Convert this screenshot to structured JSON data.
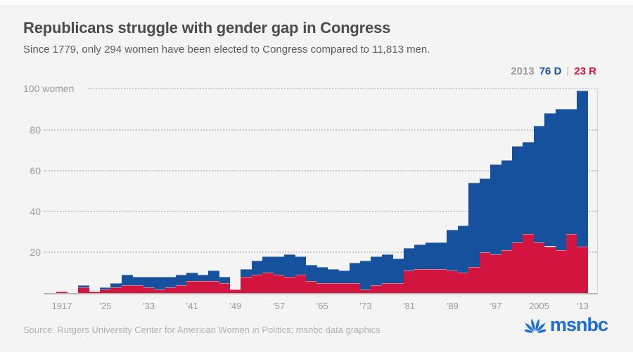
{
  "header": {
    "title": "Republicans struggle with gender gap in Congress",
    "subtitle": "Since 1779, only 294 women have been elected to Congress compared to 11,813 men."
  },
  "legend": {
    "year": "2013",
    "dem": "76 D",
    "separator": "|",
    "rep": "23 R"
  },
  "footer": {
    "source": "Source: Rutgers University Center for American Women in Politics; msnbc data graphics",
    "logo_text": "msnbc"
  },
  "colors": {
    "background": "#f4f4f4",
    "democrat_blue": "#15519d",
    "republican_red": "#d3143f",
    "logo_blue": "#1b6cd6",
    "grid_gray": "#c9c9c9",
    "axis_gray": "#b4b4b4",
    "muted_text": "#9b9b9b"
  },
  "chart_data": {
    "type": "bar",
    "stacked": true,
    "title": "Women elected to Congress by party, per Congress",
    "x": [
      1917,
      1919,
      1921,
      1923,
      1925,
      1927,
      1929,
      1931,
      1933,
      1935,
      1937,
      1939,
      1941,
      1943,
      1945,
      1947,
      1949,
      1951,
      1953,
      1955,
      1957,
      1959,
      1961,
      1963,
      1965,
      1967,
      1969,
      1971,
      1973,
      1975,
      1977,
      1979,
      1981,
      1983,
      1985,
      1987,
      1989,
      1991,
      1993,
      1995,
      1997,
      1999,
      2001,
      2003,
      2005,
      2007,
      2009,
      2011,
      2013
    ],
    "series": [
      {
        "name": "Republican women",
        "color": "#d3143f",
        "values": [
          1,
          0,
          3,
          1,
          2,
          3,
          4,
          4,
          3,
          2,
          3,
          4,
          6,
          6,
          6,
          5,
          2,
          8,
          9,
          10,
          9,
          8,
          9,
          6,
          5,
          5,
          5,
          5,
          2,
          4,
          5,
          5,
          11,
          12,
          12,
          12,
          11,
          10,
          13,
          20,
          19,
          21,
          25,
          29,
          25,
          23,
          21,
          29,
          23
        ]
      },
      {
        "name": "Democratic women",
        "color": "#15519d",
        "values": [
          0,
          0,
          1,
          0,
          1,
          2,
          5,
          4,
          5,
          6,
          5,
          5,
          4,
          3,
          5,
          3,
          0,
          4,
          7,
          8,
          9,
          11,
          9,
          8,
          8,
          7,
          6,
          10,
          14,
          14,
          14,
          12,
          11,
          12,
          13,
          13,
          20,
          23,
          41,
          36,
          44,
          44,
          47,
          45,
          57,
          65,
          69,
          61,
          76
        ]
      }
    ],
    "ylim": [
      0,
      100
    ],
    "y_ticks": [
      {
        "value": 20,
        "label": "20"
      },
      {
        "value": 40,
        "label": "40"
      },
      {
        "value": 60,
        "label": "60"
      },
      {
        "value": 80,
        "label": "80"
      },
      {
        "value": 100,
        "label": "100",
        "suffix": " women"
      }
    ],
    "x_ticks": [
      {
        "index": 0,
        "label": "1917"
      },
      {
        "index": 4,
        "label": "’25"
      },
      {
        "index": 8,
        "label": "’33"
      },
      {
        "index": 12,
        "label": "’41"
      },
      {
        "index": 16,
        "label": "’49"
      },
      {
        "index": 20,
        "label": "’57"
      },
      {
        "index": 24,
        "label": "’65"
      },
      {
        "index": 28,
        "label": "’73"
      },
      {
        "index": 32,
        "label": "’81"
      },
      {
        "index": 36,
        "label": "’89"
      },
      {
        "index": 40,
        "label": "’97"
      },
      {
        "index": 44,
        "label": "2005"
      },
      {
        "index": 48,
        "label": "’13"
      }
    ],
    "grid": "horizontal-dotted",
    "legend_position": "top-right",
    "annotation_2013": {
      "democrats": 76,
      "republicans": 23,
      "total": 99
    }
  }
}
